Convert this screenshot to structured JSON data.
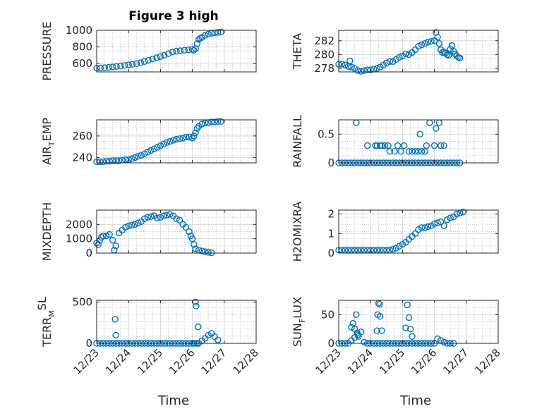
{
  "chart_data": [
    {
      "type": "scatter",
      "title": "Figure 3 high",
      "ylabel": "PRESSURE",
      "xlim": [
        0,
        5
      ],
      "ylim": [
        500,
        1000
      ],
      "yticks": [
        600,
        800,
        1000
      ],
      "color": "#0072BD",
      "x": [
        0.0,
        0.12,
        0.25,
        0.38,
        0.5,
        0.62,
        0.75,
        0.88,
        1.0,
        1.12,
        1.25,
        1.38,
        1.5,
        1.62,
        1.75,
        1.88,
        2.0,
        2.12,
        2.25,
        2.38,
        2.5,
        2.62,
        2.75,
        2.88,
        3.0,
        3.05,
        3.1,
        3.15,
        3.2,
        3.25,
        3.3,
        3.4,
        3.5,
        3.6,
        3.7,
        3.8,
        3.9
      ],
      "y": [
        545,
        548,
        550,
        555,
        560,
        565,
        570,
        578,
        585,
        592,
        600,
        612,
        625,
        640,
        655,
        670,
        685,
        700,
        720,
        740,
        750,
        755,
        760,
        765,
        770,
        760,
        780,
        840,
        890,
        905,
        915,
        940,
        955,
        965,
        970,
        975,
        980
      ]
    },
    {
      "type": "scatter",
      "ylabel": "THETA",
      "xlim": [
        0,
        5
      ],
      "ylim": [
        277.5,
        283.5
      ],
      "yticks": [
        278,
        280,
        282
      ],
      "color": "#0072BD",
      "x": [
        0.0,
        0.1,
        0.2,
        0.3,
        0.35,
        0.4,
        0.5,
        0.6,
        0.7,
        0.8,
        0.9,
        1.0,
        1.1,
        1.2,
        1.3,
        1.4,
        1.5,
        1.6,
        1.7,
        1.8,
        1.9,
        2.0,
        2.1,
        2.2,
        2.3,
        2.4,
        2.5,
        2.6,
        2.7,
        2.8,
        2.9,
        3.0,
        3.05,
        3.1,
        3.15,
        3.2,
        3.25,
        3.3,
        3.35,
        3.4,
        3.45,
        3.5,
        3.55,
        3.6,
        3.65,
        3.7,
        3.75,
        3.8
      ],
      "y": [
        278.6,
        278.6,
        278.5,
        278.3,
        279.1,
        278.2,
        278.0,
        277.7,
        277.6,
        277.7,
        277.8,
        277.8,
        277.9,
        278.0,
        278.2,
        278.5,
        278.8,
        279.0,
        279.0,
        279.3,
        279.6,
        279.8,
        280.1,
        280.0,
        280.3,
        280.7,
        281.2,
        281.4,
        281.6,
        281.8,
        281.9,
        282.0,
        283.2,
        282.5,
        281.6,
        280.7,
        280.3,
        280.4,
        280.2,
        280.0,
        279.9,
        280.8,
        281.3,
        280.5,
        280.1,
        279.8,
        279.6,
        279.5
      ]
    },
    {
      "type": "scatter",
      "ylabel": "AIR_TEMP",
      "xlim": [
        0,
        5
      ],
      "ylim": [
        235,
        275
      ],
      "yticks": [
        240,
        260
      ],
      "color": "#0072BD",
      "x": [
        0.0,
        0.1,
        0.2,
        0.3,
        0.4,
        0.5,
        0.6,
        0.7,
        0.8,
        0.9,
        1.0,
        1.1,
        1.2,
        1.3,
        1.4,
        1.5,
        1.6,
        1.7,
        1.8,
        1.9,
        2.0,
        2.1,
        2.2,
        2.3,
        2.4,
        2.5,
        2.6,
        2.7,
        2.8,
        2.9,
        3.0,
        3.05,
        3.1,
        3.15,
        3.2,
        3.3,
        3.4,
        3.5,
        3.6,
        3.7,
        3.8,
        3.9
      ],
      "y": [
        236,
        236,
        236,
        236.5,
        236.5,
        237,
        237,
        237,
        237.5,
        238,
        238,
        239,
        240,
        241,
        242,
        243.5,
        245,
        246.5,
        248,
        249.5,
        251,
        252.5,
        254,
        255,
        256,
        257,
        257.5,
        258,
        259,
        259,
        258,
        260,
        263,
        267,
        269,
        271,
        272,
        272.5,
        273,
        273,
        273.5,
        273.5
      ]
    },
    {
      "type": "scatter",
      "ylabel": "RAINFALL",
      "xlim": [
        0,
        5
      ],
      "ylim": [
        0,
        0.75
      ],
      "yticks": [
        0,
        0.5
      ],
      "color": "#0072BD",
      "x": [
        0.0,
        0.1,
        0.2,
        0.3,
        0.4,
        0.5,
        0.6,
        0.7,
        0.8,
        0.9,
        1.0,
        1.1,
        1.2,
        1.3,
        1.4,
        1.5,
        1.6,
        1.7,
        1.8,
        1.9,
        2.0,
        2.1,
        2.2,
        2.3,
        2.4,
        2.5,
        2.6,
        2.7,
        2.8,
        2.9,
        3.0,
        3.1,
        3.2,
        3.3,
        3.4,
        3.5,
        3.6,
        3.7,
        3.8,
        0.55,
        0.9,
        1.15,
        1.2,
        1.3,
        1.35,
        1.45,
        1.55,
        1.6,
        1.75,
        1.85,
        1.95,
        2.05,
        2.2,
        2.3,
        2.4,
        2.5,
        2.55,
        2.6,
        2.7,
        2.75,
        2.85,
        3.0,
        3.05,
        3.15,
        3.2,
        3.3
      ],
      "y": [
        0,
        0,
        0,
        0,
        0,
        0,
        0,
        0,
        0,
        0,
        0,
        0,
        0,
        0,
        0,
        0,
        0,
        0,
        0,
        0,
        0,
        0,
        0,
        0,
        0,
        0,
        0,
        0,
        0,
        0,
        0,
        0,
        0,
        0,
        0,
        0,
        0,
        0,
        0,
        0.7,
        0.3,
        0.3,
        0.3,
        0.3,
        0.3,
        0.3,
        0.3,
        0.2,
        0.2,
        0.3,
        0.2,
        0.3,
        0.2,
        0.2,
        0.2,
        0.2,
        0.5,
        0.2,
        0.2,
        0.3,
        0.7,
        0.3,
        0.6,
        0.7,
        0.3,
        0.3
      ]
    },
    {
      "type": "scatter",
      "ylabel": "MIXDEPTH",
      "xlim": [
        0,
        5
      ],
      "ylim": [
        0,
        3000
      ],
      "yticks": [
        0,
        1000,
        2000
      ],
      "color": "#0072BD",
      "x": [
        0.0,
        0.05,
        0.1,
        0.15,
        0.2,
        0.3,
        0.4,
        0.5,
        0.55,
        0.6,
        0.7,
        0.8,
        0.9,
        1.0,
        1.1,
        1.2,
        1.3,
        1.4,
        1.5,
        1.6,
        1.7,
        1.8,
        1.9,
        2.0,
        2.1,
        2.2,
        2.3,
        2.4,
        2.5,
        2.6,
        2.7,
        2.8,
        2.9,
        2.95,
        3.0,
        3.05,
        3.1,
        3.2,
        3.3,
        3.4,
        3.5,
        3.6
      ],
      "y": [
        700,
        600,
        900,
        1100,
        1200,
        1200,
        1300,
        900,
        200,
        500,
        1400,
        1600,
        1800,
        1900,
        1950,
        2000,
        2100,
        2200,
        2400,
        2500,
        2550,
        2600,
        2450,
        2500,
        2600,
        2650,
        2700,
        2600,
        2400,
        2300,
        2000,
        1800,
        1500,
        1200,
        1000,
        600,
        300,
        200,
        150,
        100,
        50,
        30
      ]
    },
    {
      "type": "scatter",
      "ylabel": "H2OMIXRA",
      "xlim": [
        0,
        5
      ],
      "ylim": [
        0,
        2.2
      ],
      "yticks": [
        0,
        1,
        2
      ],
      "color": "#0072BD",
      "x": [
        0.0,
        0.1,
        0.2,
        0.3,
        0.4,
        0.5,
        0.6,
        0.7,
        0.8,
        0.9,
        1.0,
        1.1,
        1.2,
        1.3,
        1.4,
        1.5,
        1.6,
        1.7,
        1.8,
        1.9,
        2.0,
        2.1,
        2.2,
        2.3,
        2.4,
        2.5,
        2.6,
        2.7,
        2.8,
        2.9,
        3.0,
        3.1,
        3.2,
        3.3,
        3.4,
        3.5,
        3.6,
        3.7,
        3.8,
        3.9
      ],
      "y": [
        0.15,
        0.15,
        0.15,
        0.15,
        0.15,
        0.15,
        0.15,
        0.15,
        0.15,
        0.15,
        0.15,
        0.15,
        0.15,
        0.15,
        0.15,
        0.15,
        0.15,
        0.2,
        0.25,
        0.35,
        0.45,
        0.55,
        0.7,
        0.85,
        1.0,
        1.2,
        1.3,
        1.3,
        1.35,
        1.4,
        1.5,
        1.55,
        1.6,
        1.4,
        1.7,
        1.8,
        1.85,
        2.0,
        2.05,
        2.1
      ]
    },
    {
      "type": "scatter",
      "ylabel": "TERR_MSL",
      "xlim": [
        0,
        5
      ],
      "ylim": [
        0,
        520
      ],
      "yticks": [
        0,
        500
      ],
      "color": "#0072BD",
      "x": [
        0.0,
        0.1,
        0.2,
        0.3,
        0.4,
        0.5,
        0.6,
        0.7,
        0.8,
        0.9,
        1.0,
        1.1,
        1.2,
        1.3,
        1.4,
        1.5,
        1.6,
        1.7,
        1.8,
        1.9,
        2.0,
        2.1,
        2.2,
        2.3,
        2.4,
        2.5,
        2.6,
        2.7,
        2.8,
        2.9,
        3.0,
        3.05,
        3.1,
        3.15,
        3.2,
        3.3,
        3.4,
        3.5,
        3.6,
        3.7,
        3.8,
        0.58,
        0.6,
        3.1,
        3.12,
        3.18
      ],
      "y": [
        0,
        0,
        0,
        0,
        0,
        0,
        0,
        0,
        0,
        0,
        0,
        0,
        0,
        0,
        0,
        0,
        0,
        0,
        0,
        0,
        0,
        0,
        0,
        0,
        0,
        0,
        0,
        0,
        0,
        0,
        0,
        0,
        0,
        0,
        0,
        30,
        60,
        100,
        120,
        80,
        40,
        290,
        100,
        500,
        450,
        200
      ]
    },
    {
      "type": "scatter",
      "ylabel": "SUN_FLUX",
      "xlim": [
        0,
        5
      ],
      "ylim": [
        0,
        75
      ],
      "yticks": [
        0,
        50
      ],
      "color": "#0072BD",
      "x": [
        0.0,
        0.1,
        0.2,
        0.3,
        0.4,
        0.5,
        0.6,
        0.7,
        0.8,
        0.9,
        1.0,
        1.1,
        1.2,
        1.3,
        1.4,
        1.5,
        1.6,
        1.7,
        1.8,
        1.9,
        2.0,
        2.1,
        2.2,
        2.3,
        2.4,
        2.5,
        2.6,
        2.7,
        2.8,
        2.9,
        3.0,
        3.1,
        3.2,
        3.3,
        3.4,
        3.5,
        3.6,
        0.4,
        0.45,
        0.5,
        0.55,
        0.58,
        0.62,
        1.2,
        1.22,
        1.25,
        1.28,
        1.3,
        1.35,
        2.1,
        2.15,
        2.2,
        2.25,
        2.3
      ],
      "y": [
        0,
        0,
        0,
        0,
        5,
        10,
        15,
        20,
        2,
        0,
        0,
        0,
        0,
        0,
        0,
        0,
        0,
        0,
        0,
        0,
        0,
        0,
        0,
        0,
        0,
        0,
        0,
        0,
        0,
        0,
        0,
        8,
        5,
        2,
        0,
        0,
        0,
        28,
        35,
        25,
        50,
        18,
        12,
        22,
        50,
        70,
        68,
        47,
        22,
        27,
        67,
        45,
        25,
        12
      ]
    }
  ],
  "shared_x": {
    "label": "Time",
    "ticks": [
      0,
      1,
      2,
      3,
      4,
      5
    ],
    "tick_labels": [
      "12/23",
      "12/24",
      "12/25",
      "12/26",
      "12/27",
      "12/28"
    ]
  },
  "ylabel_display": [
    {
      "main": "PRESSURE",
      "sub": "",
      "suffix": "",
      "sup": false
    },
    {
      "main": "THETA",
      "sub": "",
      "suffix": "",
      "sup": false
    },
    {
      "main": "AIR",
      "sub": "T",
      "suffix": "EMP",
      "sup": false
    },
    {
      "main": "RAINFALL",
      "sub": "",
      "suffix": "",
      "sup": false
    },
    {
      "main": "MIXDEPTH",
      "sub": "",
      "suffix": "",
      "sup": false
    },
    {
      "main": "H2OMIXRA",
      "sub": "",
      "suffix": "",
      "sup": false
    },
    {
      "main": "TERR",
      "sub": "M",
      "suffix": "SL",
      "sup": true
    },
    {
      "main": "SUN",
      "sub": "F",
      "suffix": "LUX",
      "sup": false
    }
  ]
}
